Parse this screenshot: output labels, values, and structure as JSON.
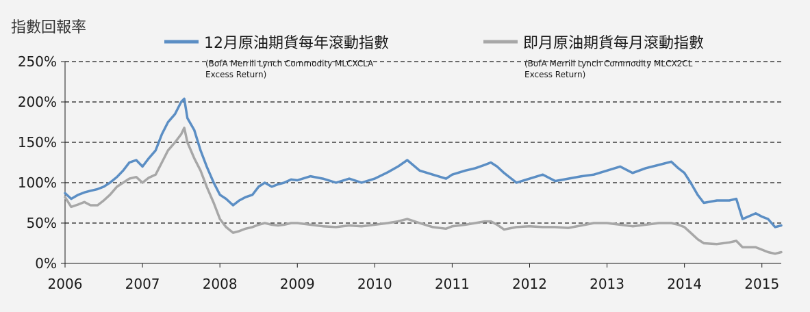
{
  "chart_data": {
    "type": "line",
    "ylabel": "指數回報率",
    "ylim": [
      0,
      250
    ],
    "yticks": [
      "0%",
      "50%",
      "100%",
      "150%",
      "200%",
      "250%"
    ],
    "ytick_values": [
      0,
      50,
      100,
      150,
      200,
      250
    ],
    "xlim": [
      2006,
      2015.25
    ],
    "xticks": [
      "2006",
      "2007",
      "2008",
      "2009",
      "2010",
      "2011",
      "2012",
      "2013",
      "2014",
      "2015"
    ],
    "xtick_values": [
      2006,
      2007,
      2008,
      2009,
      2010,
      2011,
      2012,
      2013,
      2014,
      2015
    ],
    "grid": "horizontal dashed",
    "legend_position": "top",
    "series": [
      {
        "name": "12月原油期貨每年滾動指數",
        "note": [
          "(BofA Merrill Lynch Commodity MLCXCLA",
          "Excess Return)"
        ],
        "color": "#5b8ec4",
        "x": [
          2006.0,
          2006.08,
          2006.17,
          2006.25,
          2006.33,
          2006.42,
          2006.5,
          2006.58,
          2006.67,
          2006.75,
          2006.83,
          2006.92,
          2007.0,
          2007.08,
          2007.17,
          2007.25,
          2007.33,
          2007.42,
          2007.5,
          2007.54,
          2007.58,
          2007.67,
          2007.75,
          2007.83,
          2007.92,
          2008.0,
          2008.08,
          2008.17,
          2008.25,
          2008.33,
          2008.42,
          2008.5,
          2008.58,
          2008.67,
          2008.75,
          2008.83,
          2008.92,
          2009.0,
          2009.17,
          2009.33,
          2009.5,
          2009.67,
          2009.83,
          2010.0,
          2010.17,
          2010.3,
          2010.42,
          2010.58,
          2010.75,
          2010.92,
          2011.0,
          2011.17,
          2011.3,
          2011.42,
          2011.5,
          2011.58,
          2011.67,
          2011.83,
          2012.0,
          2012.17,
          2012.33,
          2012.5,
          2012.67,
          2012.83,
          2013.0,
          2013.17,
          2013.33,
          2013.5,
          2013.67,
          2013.83,
          2013.92,
          2014.0,
          2014.08,
          2014.17,
          2014.25,
          2014.42,
          2014.58,
          2014.67,
          2014.75,
          2014.92,
          2015.0,
          2015.08,
          2015.17,
          2015.25
        ],
        "values": [
          87,
          80,
          85,
          88,
          90,
          92,
          95,
          100,
          107,
          115,
          125,
          128,
          120,
          130,
          140,
          160,
          175,
          185,
          200,
          204,
          180,
          165,
          140,
          120,
          100,
          85,
          80,
          72,
          78,
          82,
          85,
          95,
          100,
          95,
          98,
          100,
          104,
          103,
          108,
          105,
          100,
          105,
          100,
          105,
          113,
          120,
          128,
          115,
          110,
          105,
          110,
          115,
          118,
          122,
          125,
          120,
          112,
          100,
          105,
          110,
          102,
          105,
          108,
          110,
          115,
          120,
          112,
          118,
          122,
          126,
          118,
          112,
          100,
          85,
          75,
          78,
          78,
          80,
          55,
          62,
          58,
          55,
          45,
          47
        ]
      },
      {
        "name": "即月原油期貨每月滾動指數",
        "note": [
          "(BofA Merrill Lynch Commodity MLCX2CL",
          "Excess Return)"
        ],
        "color": "#a7a7a7",
        "x": [
          2006.0,
          2006.08,
          2006.17,
          2006.25,
          2006.33,
          2006.42,
          2006.5,
          2006.58,
          2006.67,
          2006.75,
          2006.83,
          2006.92,
          2007.0,
          2007.08,
          2007.17,
          2007.25,
          2007.33,
          2007.42,
          2007.5,
          2007.54,
          2007.58,
          2007.67,
          2007.75,
          2007.83,
          2007.92,
          2008.0,
          2008.08,
          2008.17,
          2008.25,
          2008.33,
          2008.42,
          2008.5,
          2008.58,
          2008.67,
          2008.75,
          2008.83,
          2008.92,
          2009.0,
          2009.17,
          2009.33,
          2009.5,
          2009.67,
          2009.83,
          2010.0,
          2010.17,
          2010.3,
          2010.42,
          2010.58,
          2010.75,
          2010.92,
          2011.0,
          2011.17,
          2011.3,
          2011.42,
          2011.5,
          2011.58,
          2011.67,
          2011.83,
          2012.0,
          2012.17,
          2012.33,
          2012.5,
          2012.67,
          2012.83,
          2013.0,
          2013.17,
          2013.33,
          2013.5,
          2013.67,
          2013.83,
          2013.92,
          2014.0,
          2014.08,
          2014.17,
          2014.25,
          2014.42,
          2014.58,
          2014.67,
          2014.75,
          2014.92,
          2015.0,
          2015.08,
          2015.17,
          2015.25
        ],
        "values": [
          82,
          70,
          73,
          76,
          72,
          72,
          78,
          85,
          95,
          100,
          105,
          107,
          100,
          106,
          110,
          125,
          140,
          150,
          160,
          168,
          150,
          130,
          115,
          95,
          75,
          55,
          45,
          38,
          40,
          43,
          45,
          48,
          50,
          48,
          47,
          48,
          50,
          50,
          48,
          46,
          45,
          47,
          46,
          48,
          50,
          52,
          55,
          50,
          45,
          43,
          46,
          48,
          50,
          52,
          52,
          48,
          42,
          45,
          46,
          45,
          45,
          44,
          47,
          50,
          50,
          48,
          46,
          48,
          50,
          50,
          48,
          45,
          38,
          30,
          25,
          24,
          26,
          28,
          20,
          20,
          17,
          14,
          12,
          14
        ]
      }
    ]
  }
}
